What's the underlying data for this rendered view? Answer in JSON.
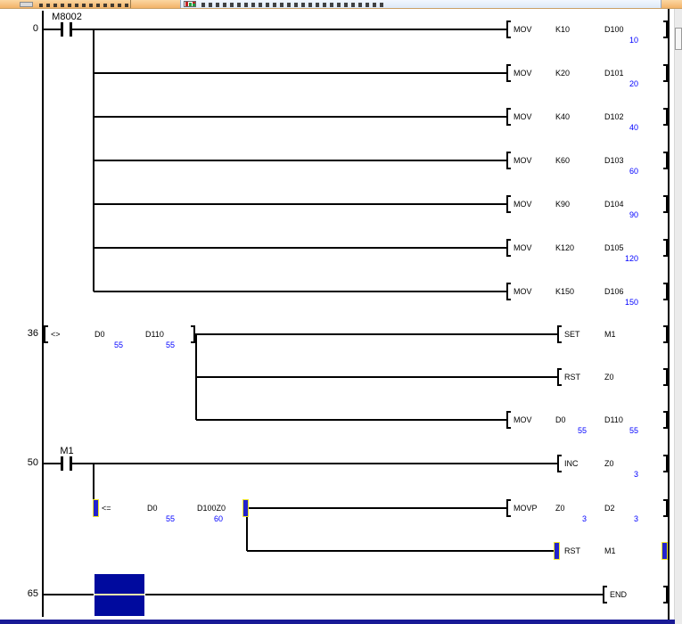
{
  "tab_bar": {
    "inactive_tab_icon": "document-icon",
    "active_tab_icon": "ladder-program-icon"
  },
  "ladder": {
    "value_color": "#0000ff",
    "energized_marker_color": "#2323cd",
    "energized_marker_outline": "#f0e62a",
    "cursor_fill_color": "#000a9e",
    "rows": [
      {
        "step": "0",
        "contact": "M8002",
        "instr": {
          "mnemonic": "MOV",
          "operands": [
            "K10",
            "D100"
          ],
          "values": [
            null,
            "10"
          ]
        }
      },
      {
        "instr": {
          "mnemonic": "MOV",
          "operands": [
            "K20",
            "D101"
          ],
          "values": [
            null,
            "20"
          ]
        }
      },
      {
        "instr": {
          "mnemonic": "MOV",
          "operands": [
            "K40",
            "D102"
          ],
          "values": [
            null,
            "40"
          ]
        }
      },
      {
        "instr": {
          "mnemonic": "MOV",
          "operands": [
            "K60",
            "D103"
          ],
          "values": [
            null,
            "60"
          ]
        }
      },
      {
        "instr": {
          "mnemonic": "MOV",
          "operands": [
            "K90",
            "D104"
          ],
          "values": [
            null,
            "90"
          ]
        }
      },
      {
        "instr": {
          "mnemonic": "MOV",
          "operands": [
            "K120",
            "D105"
          ],
          "values": [
            null,
            "120"
          ]
        }
      },
      {
        "instr": {
          "mnemonic": "MOV",
          "operands": [
            "K150",
            "D106"
          ],
          "values": [
            null,
            "150"
          ]
        }
      },
      {
        "step": "36",
        "compare": {
          "op": "<>",
          "operands": [
            "D0",
            "D110"
          ],
          "values": [
            "55",
            "55"
          ]
        },
        "instr": {
          "mnemonic": "SET",
          "operands": [
            "M1"
          ],
          "values": [
            null
          ]
        }
      },
      {
        "instr": {
          "mnemonic": "RST",
          "operands": [
            "Z0"
          ],
          "values": [
            null
          ]
        }
      },
      {
        "instr": {
          "mnemonic": "MOV",
          "operands": [
            "D0",
            "D110"
          ],
          "values": [
            "55",
            "55"
          ]
        }
      },
      {
        "step": "50",
        "contact": "M1",
        "instr": {
          "mnemonic": "INC",
          "operands": [
            "Z0"
          ],
          "values": [
            "3"
          ]
        }
      },
      {
        "compare": {
          "op": "<=",
          "operands": [
            "D0",
            "D100Z0"
          ],
          "values": [
            "55",
            "60"
          ],
          "energized": true
        },
        "instr": {
          "mnemonic": "MOVP",
          "operands": [
            "Z0",
            "D2"
          ],
          "values": [
            "3",
            "3"
          ]
        }
      },
      {
        "instr": {
          "mnemonic": "RST",
          "operands": [
            "M1"
          ],
          "values": [
            null
          ],
          "energized": true
        }
      },
      {
        "step": "65",
        "cursor": true,
        "instr": {
          "mnemonic": "END",
          "operands": [],
          "values": []
        }
      }
    ]
  }
}
